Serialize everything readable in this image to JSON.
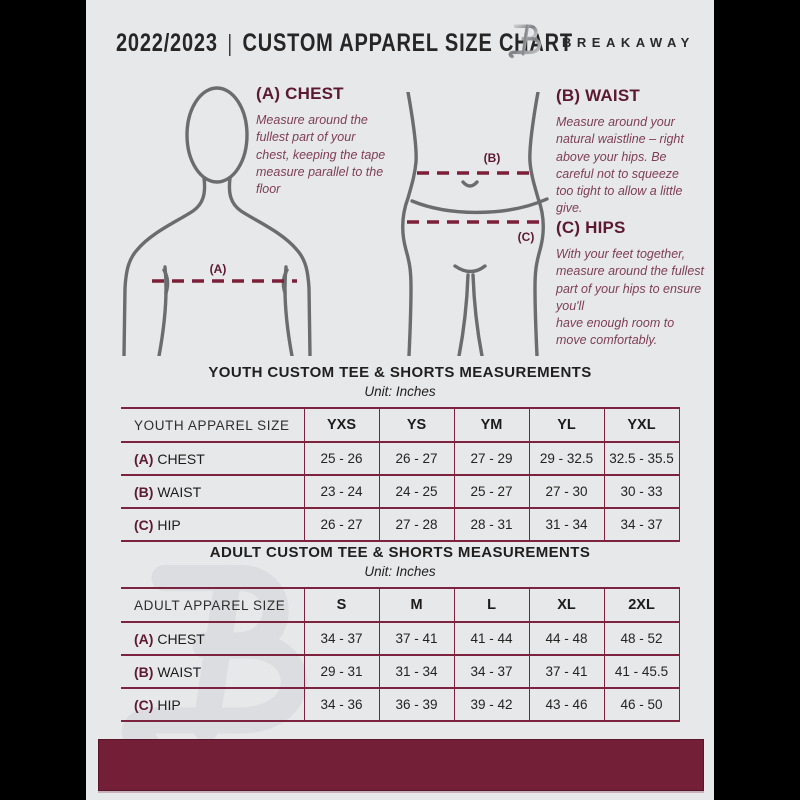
{
  "header": {
    "year": "2022/2023",
    "separator": "|",
    "title": "CUSTOM APPAREL SIZE CHART",
    "brand": "BREAKAWAY",
    "logo_icon": "breakaway-b-logo",
    "watermark_letter": "B"
  },
  "colors": {
    "page_bg": "#e7e8ea",
    "frame": "#000000",
    "maroon_heading": "#5c1a32",
    "table_border": "#7d2340",
    "description_text": "#7e3e56",
    "footer_bar": "#731f38",
    "body_outline": "#6b6c6e"
  },
  "instructions": {
    "a": {
      "label": "(A) CHEST",
      "text": "Measure around the fullest part of your chest, keeping the tape measure parallel to the floor"
    },
    "b": {
      "label": "(B) WAIST",
      "text": "Measure around your natural waistline – right above your hips. Be careful not to squeeze too tight to allow a little give."
    },
    "c": {
      "label": "(C) HIPS",
      "text": "With your feet together, measure around the fullest part of your hips to ensure you'll",
      "text2": "have enough room to move comfortably."
    }
  },
  "diagram": {
    "chest_label": "(A)",
    "waist_label": "(B)",
    "hips_label": "(C)"
  },
  "youth_table": {
    "title": "YOUTH CUSTOM TEE & SHORTS MEASUREMENTS",
    "unit": "Unit: Inches",
    "header": [
      "YOUTH APPAREL SIZE",
      "YXS",
      "YS",
      "YM",
      "YL",
      "YXL"
    ],
    "rows": [
      {
        "prefix": "(A)",
        "label": "CHEST",
        "values": [
          "25 - 26",
          "26 - 27",
          "27 - 29",
          "29 - 32.5",
          "32.5 - 35.5"
        ]
      },
      {
        "prefix": "(B)",
        "label": "WAIST",
        "values": [
          "23 - 24",
          "24 - 25",
          "25 - 27",
          "27 - 30",
          "30 - 33"
        ]
      },
      {
        "prefix": "(C)",
        "label": "HIP",
        "values": [
          "26 - 27",
          "27 - 28",
          "28 - 31",
          "31 - 34",
          "34 - 37"
        ]
      }
    ]
  },
  "adult_table": {
    "title": "ADULT CUSTOM TEE & SHORTS MEASUREMENTS",
    "unit": "Unit: Inches",
    "header": [
      "ADULT APPAREL SIZE",
      "S",
      "M",
      "L",
      "XL",
      "2XL"
    ],
    "rows": [
      {
        "prefix": "(A)",
        "label": "CHEST",
        "values": [
          "34 - 37",
          "37 - 41",
          "41 - 44",
          "44 - 48",
          "48 - 52"
        ]
      },
      {
        "prefix": "(B)",
        "label": "WAIST",
        "values": [
          "29 - 31",
          "31 - 34",
          "34 - 37",
          "37 - 41",
          "41 - 45.5"
        ]
      },
      {
        "prefix": "(C)",
        "label": "HIP",
        "values": [
          "34 - 36",
          "36 - 39",
          "39 - 42",
          "43 - 46",
          "46 - 50"
        ]
      }
    ]
  }
}
